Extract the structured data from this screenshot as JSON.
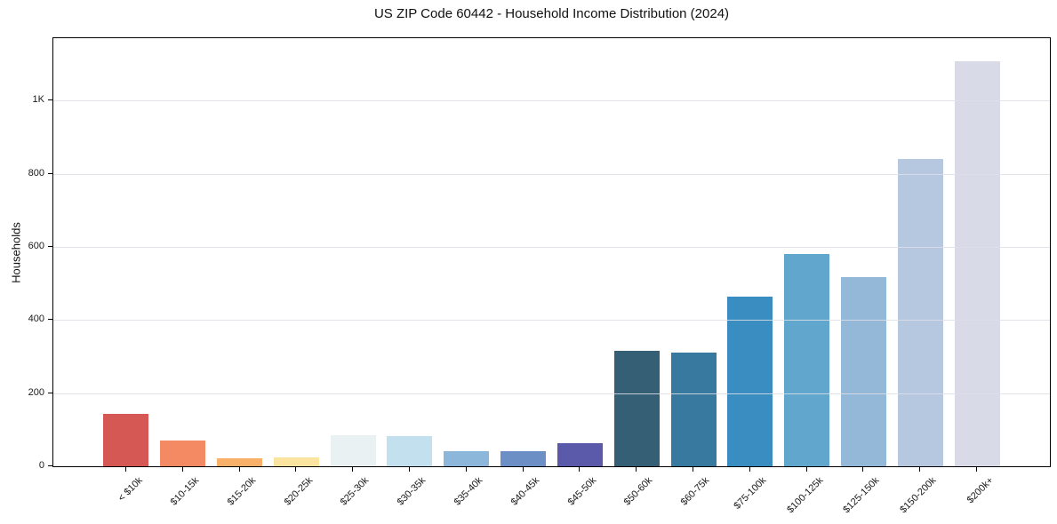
{
  "chart_data": {
    "type": "bar",
    "title": "US ZIP Code 60442 - Household Income Distribution (2024)",
    "xlabel": "",
    "ylabel": "Households",
    "categories": [
      "< $10k",
      "$10-15k",
      "$15-20k",
      "$20-25k",
      "$25-30k",
      "$30-35k",
      "$35-40k",
      "$40-45k",
      "$45-50k",
      "$50-60k",
      "$60-75k",
      "$75-100k",
      "$100-125k",
      "$125-150k",
      "$150-200k",
      "$200k+"
    ],
    "values": [
      143,
      70,
      22,
      24,
      86,
      82,
      41,
      41,
      62,
      315,
      312,
      465,
      580,
      518,
      840,
      1108
    ],
    "bar_colors": [
      "#d65854",
      "#f48a63",
      "#f9b16a",
      "#fbe3a0",
      "#e9f1f3",
      "#c3e0ee",
      "#8db7da",
      "#6c90c5",
      "#5b5aaa",
      "#355f74",
      "#37799f",
      "#3a8dc1",
      "#60a6cd",
      "#93b8d8",
      "#b6c8e0",
      "#d8dae8"
    ],
    "y_ticks": [
      {
        "value": 0,
        "label": "0"
      },
      {
        "value": 200,
        "label": "200"
      },
      {
        "value": 400,
        "label": "400"
      },
      {
        "value": 600,
        "label": "600"
      },
      {
        "value": 800,
        "label": "800"
      },
      {
        "value": 1000,
        "label": "1K"
      }
    ],
    "ylim": [
      0,
      1171
    ],
    "grid": "horizontal-over-bars",
    "legend": "none"
  },
  "colors": {
    "background": "#ffffff",
    "axis": "#000000",
    "gridline": "#e6e6ec",
    "text": "#1a1a1a"
  }
}
